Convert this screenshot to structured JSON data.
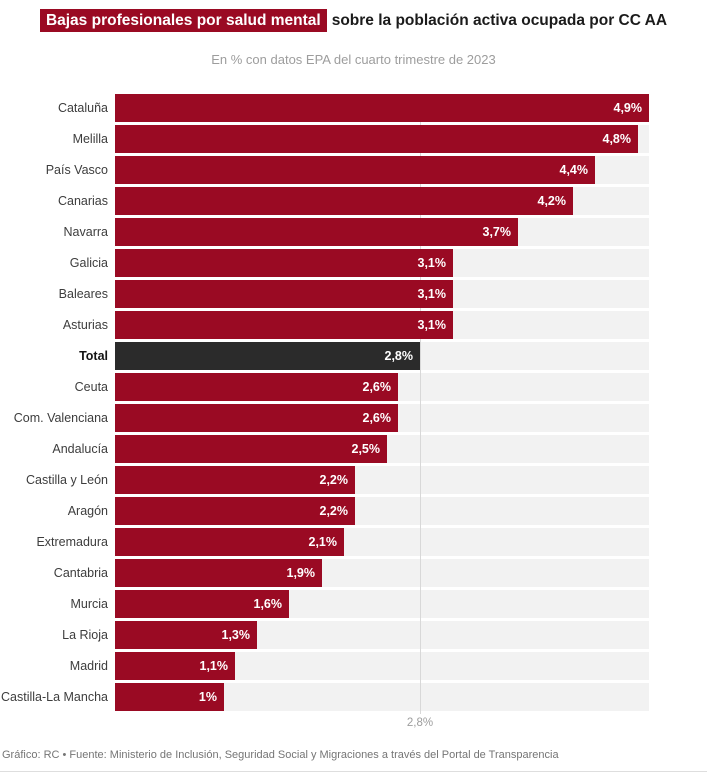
{
  "header": {
    "title_highlight": "Bajas profesionales por salud mental",
    "title_rest": "sobre la población activa ocupada por CC AA",
    "subtitle": "En % con datos EPA del cuarto trimestre de 2023"
  },
  "chart_data": {
    "type": "bar",
    "orientation": "horizontal",
    "title": "Bajas profesionales por salud mental sobre la población activa ocupada por CC AA",
    "subtitle": "En % con datos EPA del cuarto trimestre de 2023",
    "unit": "%",
    "xlim": [
      0,
      4.9
    ],
    "grid": "single reference line at total value",
    "categories": [
      "Cataluña",
      "Melilla",
      "País Vasco",
      "Canarias",
      "Navarra",
      "Galicia",
      "Baleares",
      "Asturias",
      "Total",
      "Ceuta",
      "Com. Valenciana",
      "Andalucía",
      "Castilla y León",
      "Aragón",
      "Extremadura",
      "Cantabria",
      "Murcia",
      "La Rioja",
      "Madrid",
      "Castilla-La Mancha"
    ],
    "values": [
      4.9,
      4.8,
      4.4,
      4.2,
      3.7,
      3.1,
      3.1,
      3.1,
      2.8,
      2.6,
      2.6,
      2.5,
      2.2,
      2.2,
      2.1,
      1.9,
      1.6,
      1.3,
      1.1,
      1.0
    ],
    "value_labels": [
      "4,9%",
      "4,8%",
      "4,4%",
      "4,2%",
      "3,7%",
      "3,1%",
      "3,1%",
      "3,1%",
      "2,8%",
      "2,6%",
      "2,6%",
      "2,5%",
      "2,2%",
      "2,2%",
      "2,1%",
      "1,9%",
      "1,6%",
      "1,3%",
      "1,1%",
      "1%"
    ],
    "total_category": "Total",
    "reference_line": {
      "value": 2.8,
      "label": "2,8%"
    },
    "colors": {
      "bar": "#9a0a23",
      "total_bar": "#2b2b2b",
      "track": "#f2f2f2",
      "reference_line": "#d8d8d8",
      "title_highlight_bg": "#9a0a23",
      "value_label_text": "#ffffff"
    }
  },
  "footer": {
    "credit": "Gráfico: RC • Fuente: Ministerio de Inclusión, Seguridad Social y Migraciones a través del Portal de Transparencia"
  }
}
